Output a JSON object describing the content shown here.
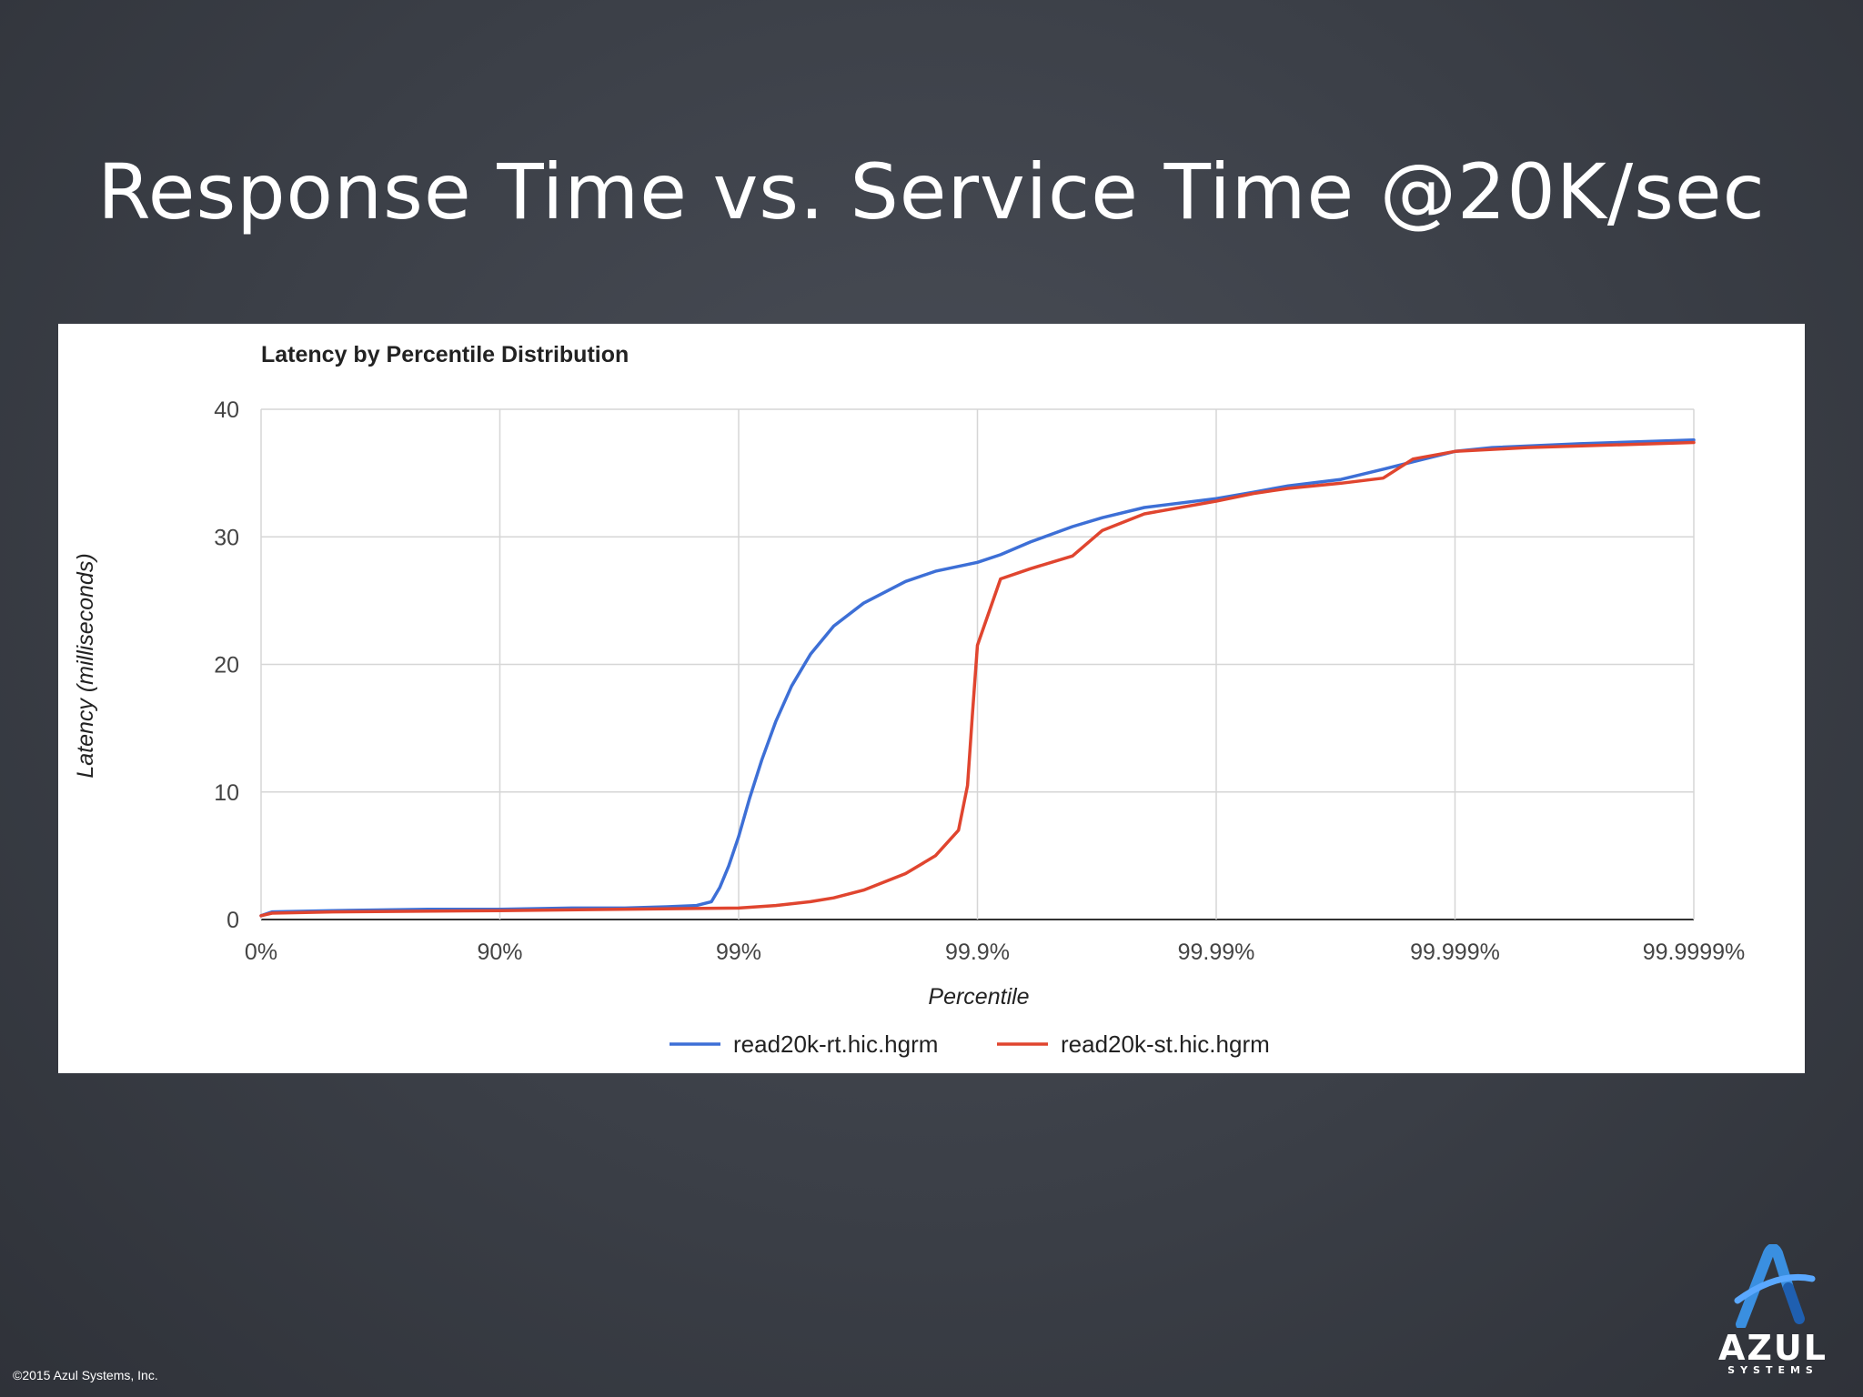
{
  "slide": {
    "title": "Response Time vs. Service Time @20K/sec",
    "copyright": "©2015 Azul Systems, Inc.",
    "logo": {
      "name": "AZUL",
      "sub": "SYSTEMS",
      "icon": "azul-a-logo-icon"
    }
  },
  "chart_data": {
    "type": "line",
    "title": "Latency by Percentile Distribution",
    "xlabel": "Percentile",
    "ylabel": "Latency (milliseconds)",
    "x_scale": "log-inverse (1/(1-percentile))",
    "x_ticks": [
      "0%",
      "90%",
      "99%",
      "99.9%",
      "99.99%",
      "99.999%",
      "99.9999%"
    ],
    "y_ticks": [
      0,
      10,
      20,
      30,
      40
    ],
    "ylim": [
      0,
      40
    ],
    "grid": true,
    "legend_position": "bottom",
    "series": [
      {
        "name": "read20k-rt.hic.hgrm",
        "color": "#3d6fd6",
        "points": [
          [
            "0%",
            0.3
          ],
          [
            "10%",
            0.6
          ],
          [
            "50%",
            0.7
          ],
          [
            "80%",
            0.8
          ],
          [
            "90%",
            0.8
          ],
          [
            "95%",
            0.9
          ],
          [
            "97%",
            0.9
          ],
          [
            "98%",
            1.0
          ],
          [
            "98.5%",
            1.1
          ],
          [
            "98.7%",
            1.4
          ],
          [
            "98.8%",
            2.5
          ],
          [
            "98.9%",
            4.2
          ],
          [
            "99%",
            6.5
          ],
          [
            "99.1%",
            9.5
          ],
          [
            "99.2%",
            12.5
          ],
          [
            "99.3%",
            15.5
          ],
          [
            "99.4%",
            18.3
          ],
          [
            "99.5%",
            20.8
          ],
          [
            "99.6%",
            23.0
          ],
          [
            "99.7%",
            24.8
          ],
          [
            "99.8%",
            26.5
          ],
          [
            "99.85%",
            27.3
          ],
          [
            "99.9%",
            28.0
          ],
          [
            "99.92%",
            28.6
          ],
          [
            "99.94%",
            29.6
          ],
          [
            "99.96%",
            30.8
          ],
          [
            "99.97%",
            31.5
          ],
          [
            "99.98%",
            32.3
          ],
          [
            "99.99%",
            33.0
          ],
          [
            "99.993%",
            33.5
          ],
          [
            "99.995%",
            34.0
          ],
          [
            "99.997%",
            34.5
          ],
          [
            "99.998%",
            35.3
          ],
          [
            "99.999%",
            36.7
          ],
          [
            "99.9993%",
            37.0
          ],
          [
            "99.9997%",
            37.3
          ],
          [
            "99.9999%",
            37.6
          ]
        ]
      },
      {
        "name": "read20k-st.hic.hgrm",
        "color": "#e0452f",
        "points": [
          [
            "0%",
            0.3
          ],
          [
            "10%",
            0.5
          ],
          [
            "50%",
            0.6
          ],
          [
            "90%",
            0.7
          ],
          [
            "99%",
            0.9
          ],
          [
            "99.3%",
            1.1
          ],
          [
            "99.5%",
            1.4
          ],
          [
            "99.6%",
            1.7
          ],
          [
            "99.7%",
            2.3
          ],
          [
            "99.8%",
            3.6
          ],
          [
            "99.85%",
            5.0
          ],
          [
            "99.88%",
            7.0
          ],
          [
            "99.89%",
            10.5
          ],
          [
            "99.895%",
            16.0
          ],
          [
            "99.9%",
            21.5
          ],
          [
            "99.92%",
            26.7
          ],
          [
            "99.94%",
            27.5
          ],
          [
            "99.96%",
            28.5
          ],
          [
            "99.97%",
            30.5
          ],
          [
            "99.98%",
            31.8
          ],
          [
            "99.99%",
            32.8
          ],
          [
            "99.993%",
            33.4
          ],
          [
            "99.995%",
            33.8
          ],
          [
            "99.997%",
            34.2
          ],
          [
            "99.998%",
            34.6
          ],
          [
            "99.9985%",
            36.1
          ],
          [
            "99.999%",
            36.7
          ],
          [
            "99.9995%",
            37.0
          ],
          [
            "99.9999%",
            37.4
          ]
        ]
      }
    ]
  }
}
